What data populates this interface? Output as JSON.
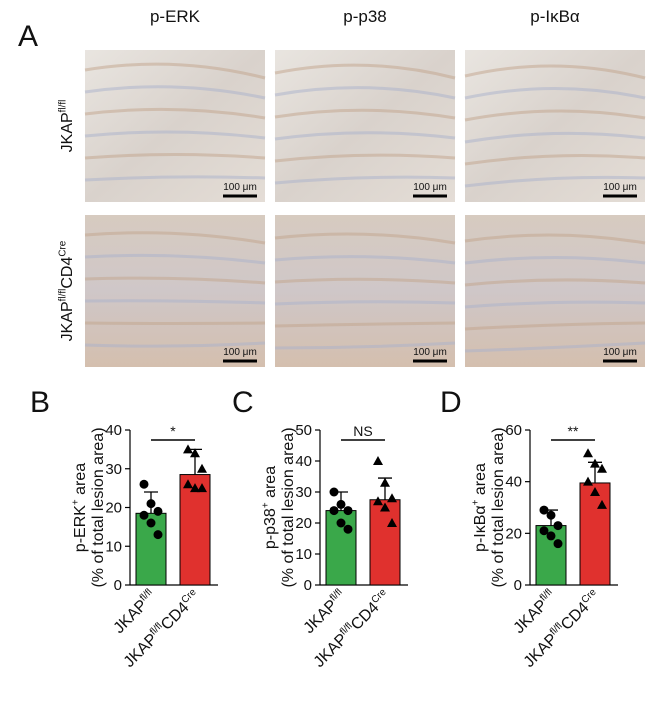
{
  "panel_a": {
    "label": "A",
    "columns": [
      "p-ERK",
      "p-p38",
      "p-IκBα"
    ],
    "rows": [
      [
        {
          "text": "JKAP"
        },
        {
          "sup": "fl/fl"
        }
      ],
      [
        {
          "text": "JKAP"
        },
        {
          "sup": "fl/fl"
        },
        {
          "text": "CD4"
        },
        {
          "sup": "Cre"
        }
      ]
    ],
    "scale_bar": "100 μm"
  },
  "chart_data": [
    {
      "type": "bar",
      "panel": "B",
      "ylabel": [
        {
          "text": "p-ERK"
        },
        {
          "sup": "+"
        },
        {
          "text": " area"
        }
      ],
      "ylabel2": "(% of total lesion area)",
      "categories": [
        [
          {
            "text": "JKAP"
          },
          {
            "sup": "fl/fl"
          }
        ],
        [
          {
            "text": "JKAP"
          },
          {
            "sup": "fl/fl"
          },
          {
            "text": "CD4"
          },
          {
            "sup": "Cre"
          }
        ]
      ],
      "values": [
        18.5,
        28.5
      ],
      "errors": [
        5.5,
        6.5
      ],
      "colors": [
        "#3aa84a",
        "#e0312e"
      ],
      "markers": [
        "circle",
        "triangle"
      ],
      "points": [
        [
          26,
          21,
          19,
          18,
          16,
          13
        ],
        [
          35,
          34,
          30,
          26,
          25,
          25
        ]
      ],
      "annotation": "*",
      "ylim": [
        0,
        40
      ],
      "yticks": [
        0,
        10,
        20,
        30,
        40
      ]
    },
    {
      "type": "bar",
      "panel": "C",
      "ylabel": [
        {
          "text": "p-p38"
        },
        {
          "sup": "+"
        },
        {
          "text": " area"
        }
      ],
      "ylabel2": "(% of total lesion area)",
      "categories": [
        [
          {
            "text": "JKAP"
          },
          {
            "sup": "fl/fl"
          }
        ],
        [
          {
            "text": "JKAP"
          },
          {
            "sup": "fl/fl"
          },
          {
            "text": "CD4"
          },
          {
            "sup": "Cre"
          }
        ]
      ],
      "values": [
        24,
        27.5
      ],
      "errors": [
        6,
        7
      ],
      "colors": [
        "#3aa84a",
        "#e0312e"
      ],
      "markers": [
        "circle",
        "triangle"
      ],
      "points": [
        [
          30,
          26,
          24,
          24,
          20,
          18
        ],
        [
          40,
          33,
          28,
          27,
          25,
          20
        ]
      ],
      "annotation": "NS",
      "ylim": [
        0,
        50
      ],
      "yticks": [
        0,
        10,
        20,
        30,
        40,
        50
      ]
    },
    {
      "type": "bar",
      "panel": "D",
      "ylabel": [
        {
          "text": "p-IκBα"
        },
        {
          "sup": "+"
        },
        {
          "text": " area"
        }
      ],
      "ylabel2": "(% of total lesion area)",
      "categories": [
        [
          {
            "text": "JKAP"
          },
          {
            "sup": "fl/fl"
          }
        ],
        [
          {
            "text": "JKAP"
          },
          {
            "sup": "fl/fl"
          },
          {
            "text": "CD4"
          },
          {
            "sup": "Cre"
          }
        ]
      ],
      "values": [
        23,
        39.5
      ],
      "errors": [
        6,
        8
      ],
      "colors": [
        "#3aa84a",
        "#e0312e"
      ],
      "markers": [
        "circle",
        "triangle"
      ],
      "points": [
        [
          29,
          27,
          23,
          21,
          19,
          16
        ],
        [
          51,
          47,
          45,
          40,
          36,
          31
        ]
      ],
      "annotation": "**",
      "ylim": [
        0,
        60
      ],
      "yticks": [
        0,
        20,
        40,
        60
      ]
    }
  ]
}
